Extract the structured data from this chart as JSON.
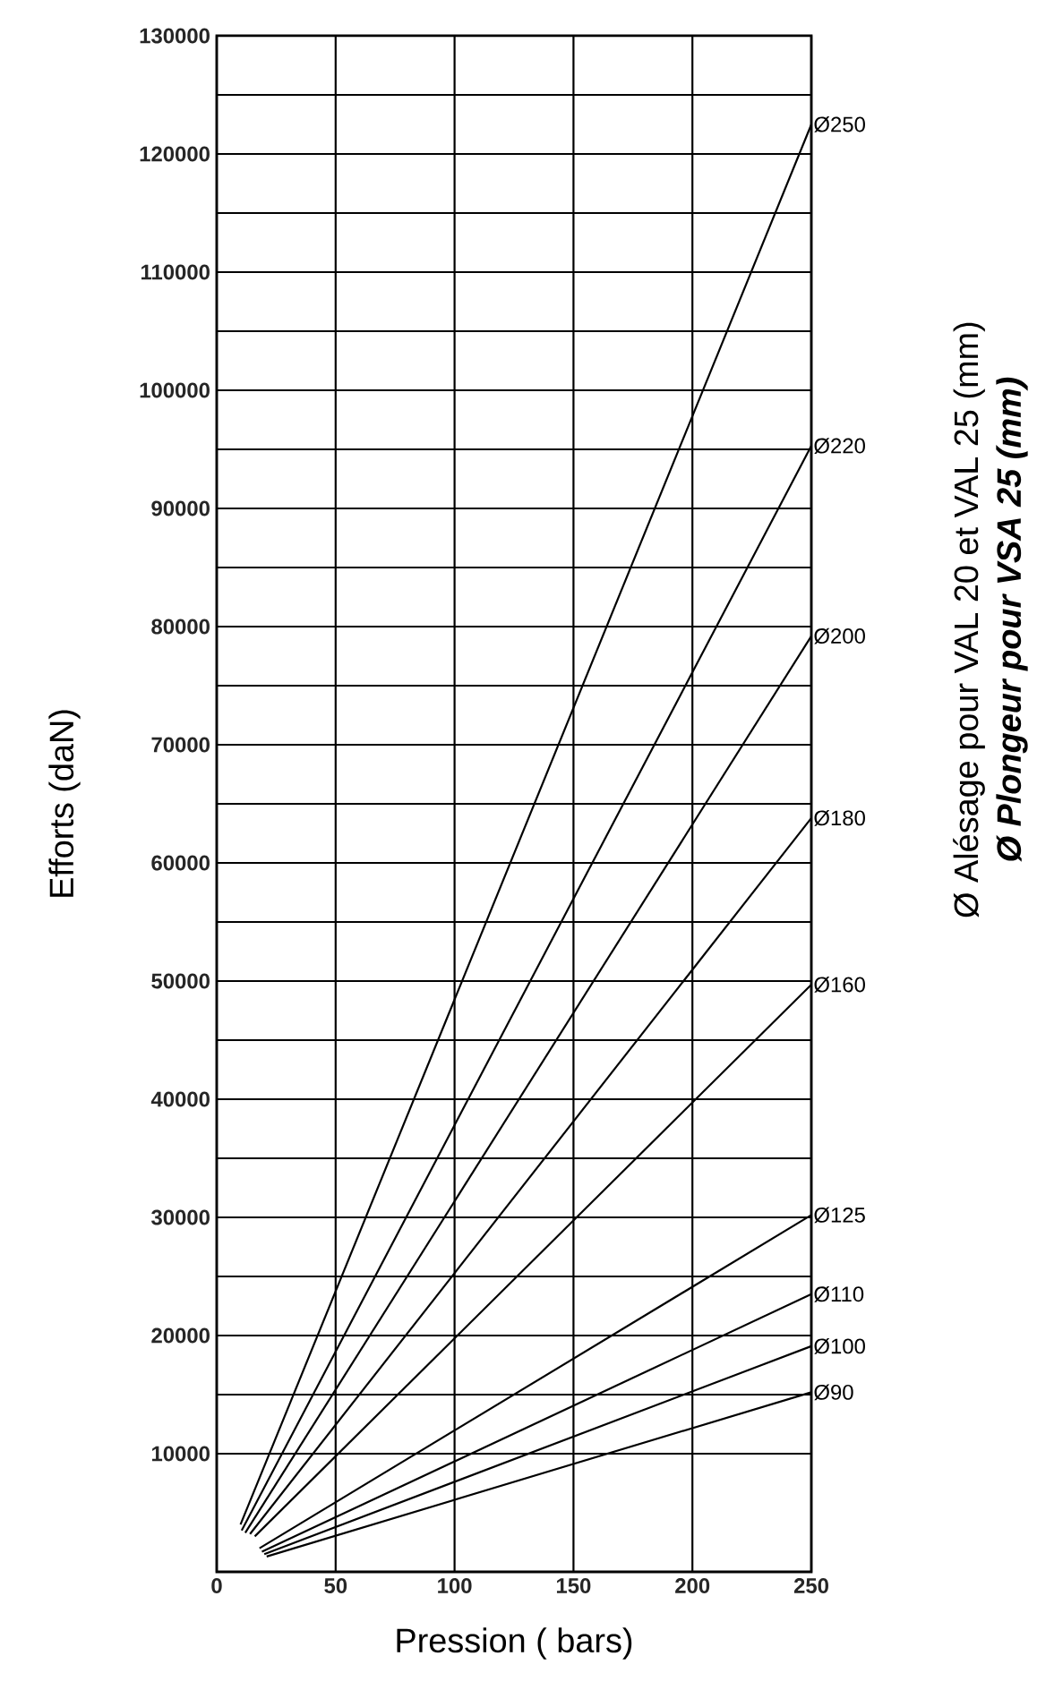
{
  "chart_data": {
    "type": "line",
    "xlabel": "Pression ( bars)",
    "ylabel": "Efforts (daN)",
    "y2label": "Ø Alésage pour VAL 20 et VAL 25 (mm)",
    "annotations": [
      "Ø Plongeur pour VSA 25 (mm)"
    ],
    "xlim": [
      0,
      250
    ],
    "xticks": [
      0,
      50,
      100,
      150,
      200,
      250
    ],
    "ylim": [
      0,
      130000
    ],
    "yticks": [
      10000,
      20000,
      30000,
      40000,
      50000,
      60000,
      70000,
      80000,
      90000,
      100000,
      110000,
      120000,
      130000
    ],
    "grid": true,
    "legend": false,
    "series": [
      {
        "name": "Ø250",
        "color": "#000000",
        "x": [
          10,
          250
        ],
        "values": [
          4000,
          122500
        ]
      },
      {
        "name": "Ø220",
        "color": "#000000",
        "x": [
          10.5,
          250
        ],
        "values": [
          3500,
          95300
        ]
      },
      {
        "name": "Ø200",
        "color": "#000000",
        "x": [
          12,
          250
        ],
        "values": [
          3300,
          79200
        ]
      },
      {
        "name": "Ø180",
        "color": "#000000",
        "x": [
          14,
          250
        ],
        "values": [
          3200,
          63800
        ]
      },
      {
        "name": "Ø160",
        "color": "#000000",
        "x": [
          16,
          250
        ],
        "values": [
          3000,
          49700
        ]
      },
      {
        "name": "Ø125",
        "color": "#000000",
        "x": [
          18,
          250
        ],
        "values": [
          2000,
          30200
        ]
      },
      {
        "name": "Ø110",
        "color": "#000000",
        "x": [
          19,
          250
        ],
        "values": [
          1700,
          23500
        ]
      },
      {
        "name": "Ø100",
        "color": "#000000",
        "x": [
          20,
          250
        ],
        "values": [
          1500,
          19100
        ]
      },
      {
        "name": "Ø90",
        "color": "#000000",
        "x": [
          21,
          250
        ],
        "values": [
          1300,
          15200
        ]
      }
    ]
  }
}
